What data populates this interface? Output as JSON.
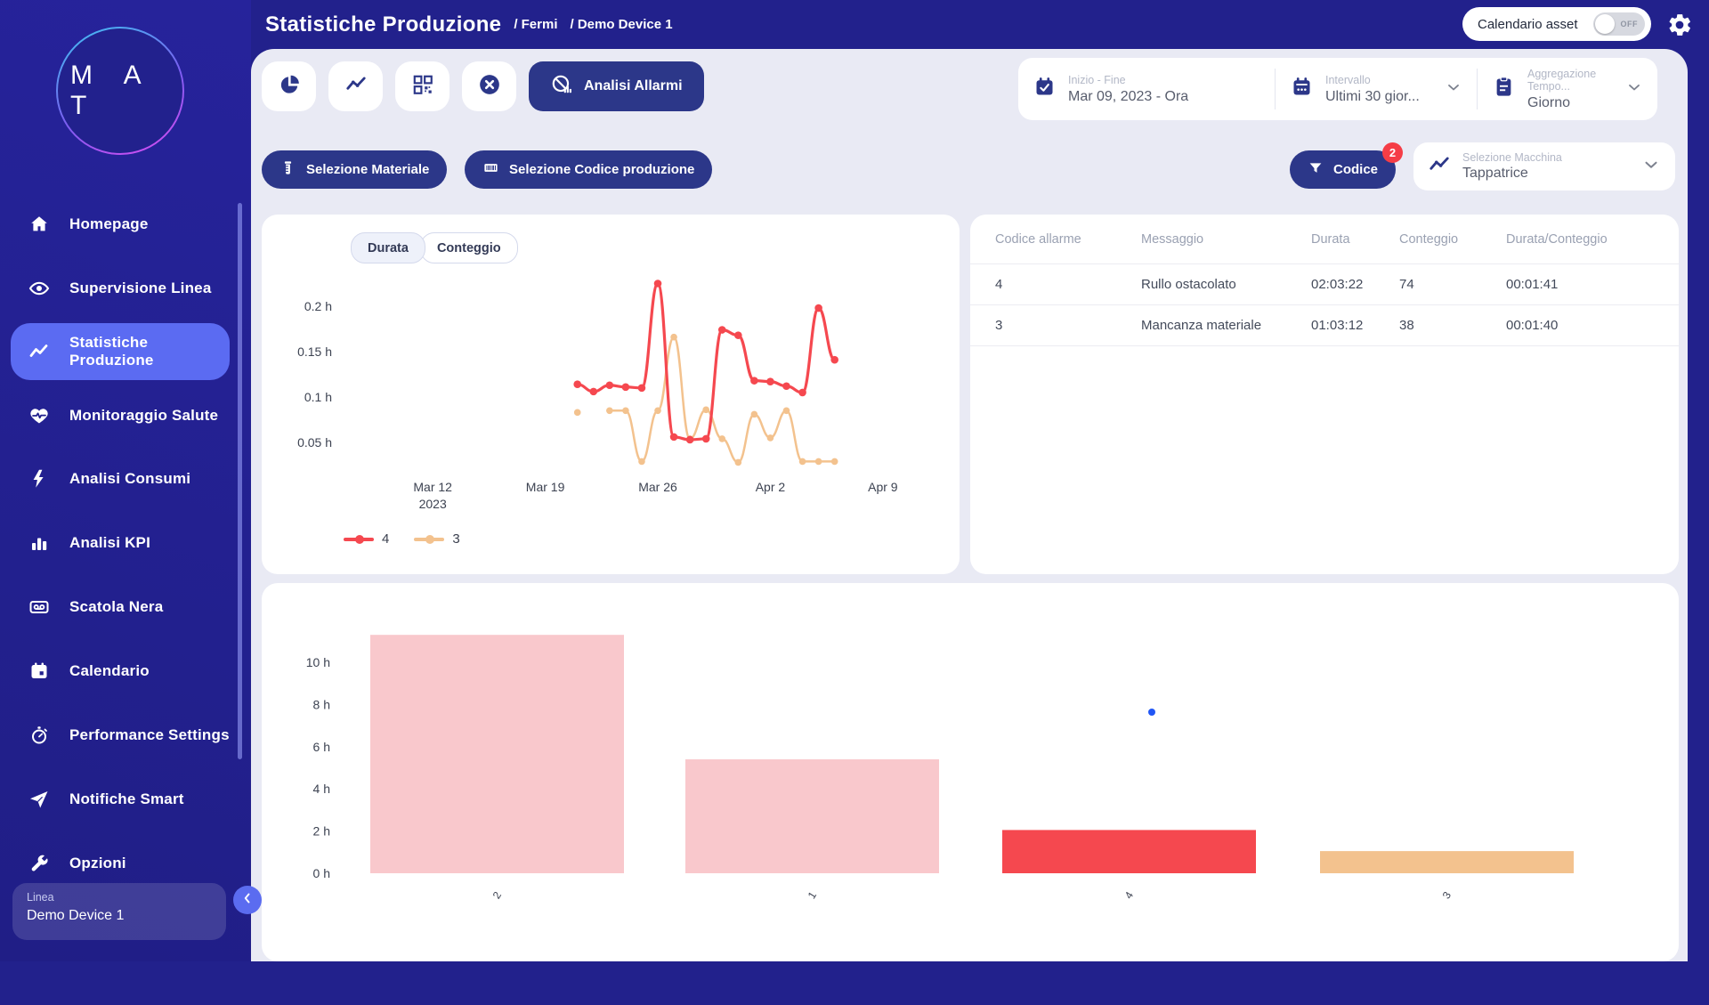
{
  "header": {
    "title": "Statistiche Produzione",
    "breadcrumb_1": "/ Fermi",
    "breadcrumb_2": "/ Demo Device 1",
    "asset_calendar_label": "Calendario asset",
    "asset_calendar_state": "OFF"
  },
  "sidebar": {
    "logo_text": "M A T",
    "items": [
      {
        "label": "Homepage"
      },
      {
        "label": "Supervisione Linea"
      },
      {
        "label": "Statistiche Produzione",
        "active": true
      },
      {
        "label": "Monitoraggio Salute"
      },
      {
        "label": "Analisi Consumi"
      },
      {
        "label": "Analisi KPI"
      },
      {
        "label": "Scatola Nera"
      },
      {
        "label": "Calendario"
      },
      {
        "label": "Performance Settings"
      },
      {
        "label": "Notifiche Smart"
      },
      {
        "label": "Opzioni"
      }
    ],
    "device_card": {
      "label": "Linea",
      "value": "Demo Device 1"
    }
  },
  "toolbar": {
    "primary_button_label": "Analisi Allarmi",
    "selectors": [
      {
        "label": "Inizio - Fine",
        "value": "Mar 09, 2023 - Ora"
      },
      {
        "label": "Intervallo",
        "value": "Ultimi 30 gior..."
      },
      {
        "label": "Aggregazione Tempo...",
        "value": "Giorno"
      }
    ]
  },
  "filters": {
    "material_label": "Selezione Materiale",
    "production_code_label": "Selezione Codice produzione",
    "code_label": "Codice",
    "code_badge": "2",
    "machine_label": "Selezione Macchina",
    "machine_value": "Tappatrice"
  },
  "stats_card": {
    "tabs": [
      {
        "label": "Durata",
        "active": true
      },
      {
        "label": "Conteggio",
        "active": false
      }
    ],
    "legend": [
      {
        "label": "4",
        "color": "#f5484f"
      },
      {
        "label": "3",
        "color": "#f3c28e"
      }
    ]
  },
  "alarm_table": {
    "columns": [
      "Codice allarme",
      "Messaggio",
      "Durata",
      "Conteggio",
      "Durata/Conteggio"
    ],
    "rows": [
      {
        "code": "4",
        "message": "Rullo ostacolato",
        "duration": "02:03:22",
        "count": "74",
        "ratio": "00:01:41"
      },
      {
        "code": "3",
        "message": "Mancanza materiale",
        "duration": "01:03:12",
        "count": "38",
        "ratio": "00:01:40"
      }
    ]
  },
  "chart_data": [
    {
      "type": "line",
      "title": "",
      "unit": "h",
      "x": [
        "Mar 21",
        "Mar 22",
        "Mar 23",
        "Mar 24",
        "Mar 25",
        "Mar 26",
        "Mar 27",
        "Mar 28",
        "Mar 29",
        "Mar 30",
        "Mar 31",
        "Apr 1",
        "Apr 2",
        "Apr 3",
        "Apr 4",
        "Apr 5",
        "Apr 6"
      ],
      "start_day": 12,
      "series": [
        {
          "name": "4",
          "color": "#f5484f",
          "values": [
            0.114,
            0.106,
            0.113,
            0.111,
            0.11,
            0.225,
            0.056,
            0.053,
            0.054,
            0.174,
            0.168,
            0.118,
            0.117,
            0.112,
            0.105,
            0.198,
            0.141
          ]
        },
        {
          "name": "3",
          "color": "#f3c28e",
          "values": [
            0.083,
            null,
            0.085,
            0.085,
            0.029,
            0.085,
            0.166,
            0.054,
            0.086,
            0.054,
            0.028,
            0.081,
            0.055,
            0.085,
            0.029,
            0.029,
            0.029
          ]
        }
      ],
      "x_ticks": [
        {
          "label": "Mar 12",
          "sublabel": "2023",
          "day": 3
        },
        {
          "label": "Mar 19",
          "day": 10
        },
        {
          "label": "Mar 26",
          "day": 17
        },
        {
          "label": "Apr 2",
          "day": 24
        },
        {
          "label": "Apr 9",
          "day": 31
        }
      ],
      "y_ticks": [
        0.05,
        0.1,
        0.15,
        0.2
      ],
      "ylim": [
        0,
        0.24
      ],
      "grid": false,
      "legend_position": "bottom-left"
    },
    {
      "type": "bar",
      "title": "",
      "unit": "h",
      "categories": [
        "2",
        "1",
        "4",
        "3"
      ],
      "values": [
        11.3,
        5.4,
        2.05,
        1.05
      ],
      "bar_colors": [
        "#f9c8cc",
        "#f9c8cc",
        "#f5484f",
        "#f3c28e"
      ],
      "y_ticks": [
        0,
        2,
        4,
        6,
        8,
        10
      ],
      "ylim": [
        0,
        11.6
      ],
      "grid": false,
      "stray_point": {
        "color": "#2156f5"
      }
    }
  ]
}
